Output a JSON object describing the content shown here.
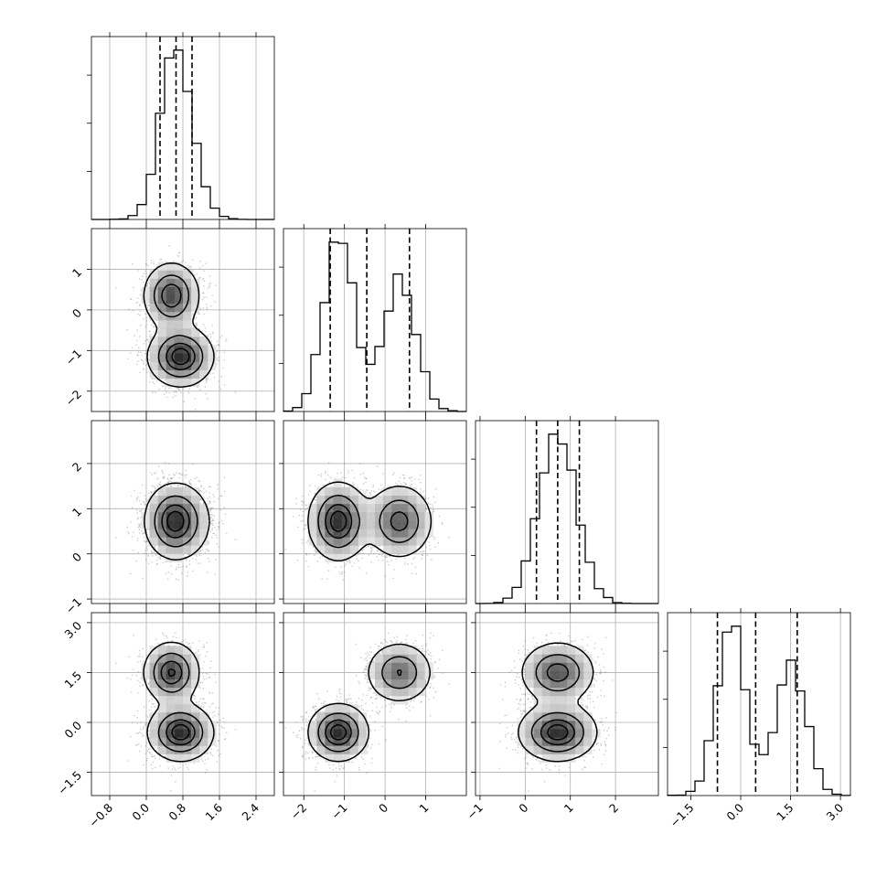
{
  "chart_data": {
    "type": "corner",
    "parameters": [
      {
        "ticks": [
          -0.8,
          0.0,
          0.8,
          1.6,
          2.4
        ],
        "tick_labels": [
          "−0.8",
          "0.0",
          "0.8",
          "1.6",
          "2.4"
        ],
        "range": [
          -1.2,
          2.8
        ],
        "quantiles": [
          0.3,
          0.65,
          1.0
        ],
        "components": [
          {
            "w": 1.0,
            "mu": 0.65,
            "sigma": 0.38
          }
        ]
      },
      {
        "ticks": [
          -2,
          -1,
          0,
          1
        ],
        "tick_labels": [
          "−2",
          "−1",
          "0",
          "1"
        ],
        "range": [
          -2.5,
          2.0
        ],
        "quantiles": [
          -1.35,
          -0.45,
          0.6
        ],
        "components": [
          {
            "w": 0.55,
            "mu": -1.15,
            "sigma": 0.36
          },
          {
            "w": 0.45,
            "mu": 0.4,
            "sigma": 0.4
          }
        ]
      },
      {
        "ticks": [
          -1,
          0,
          1,
          2
        ],
        "tick_labels": [
          "−1",
          "0",
          "1",
          "2"
        ],
        "range": [
          -1.1,
          2.95
        ],
        "quantiles": [
          0.25,
          0.72,
          1.2
        ],
        "components": [
          {
            "w": 1.0,
            "mu": 0.72,
            "sigma": 0.42
          }
        ]
      },
      {
        "ticks": [
          -1.5,
          0.0,
          1.5,
          3.0
        ],
        "tick_labels": [
          "−1.5",
          "0.0",
          "1.5",
          "3.0"
        ],
        "range": [
          -2.2,
          3.3
        ],
        "quantiles": [
          -0.7,
          0.45,
          1.7
        ],
        "components": [
          {
            "w": 0.55,
            "mu": -0.3,
            "sigma": 0.42
          },
          {
            "w": 0.45,
            "mu": 1.5,
            "sigma": 0.5
          }
        ]
      }
    ],
    "joint_modes": [
      {
        "w": 0.55,
        "mu": [
          0.75,
          -1.15,
          0.72,
          -0.3
        ],
        "sigma": [
          0.35,
          0.36,
          0.42,
          0.42
        ]
      },
      {
        "w": 0.45,
        "mu": [
          0.55,
          0.35,
          0.72,
          1.5
        ],
        "sigma": [
          0.3,
          0.4,
          0.4,
          0.45
        ]
      }
    ],
    "contour_levels": [
      0.118,
      0.393,
      0.675,
      0.865
    ],
    "grid": true,
    "hist_bins": 20
  }
}
